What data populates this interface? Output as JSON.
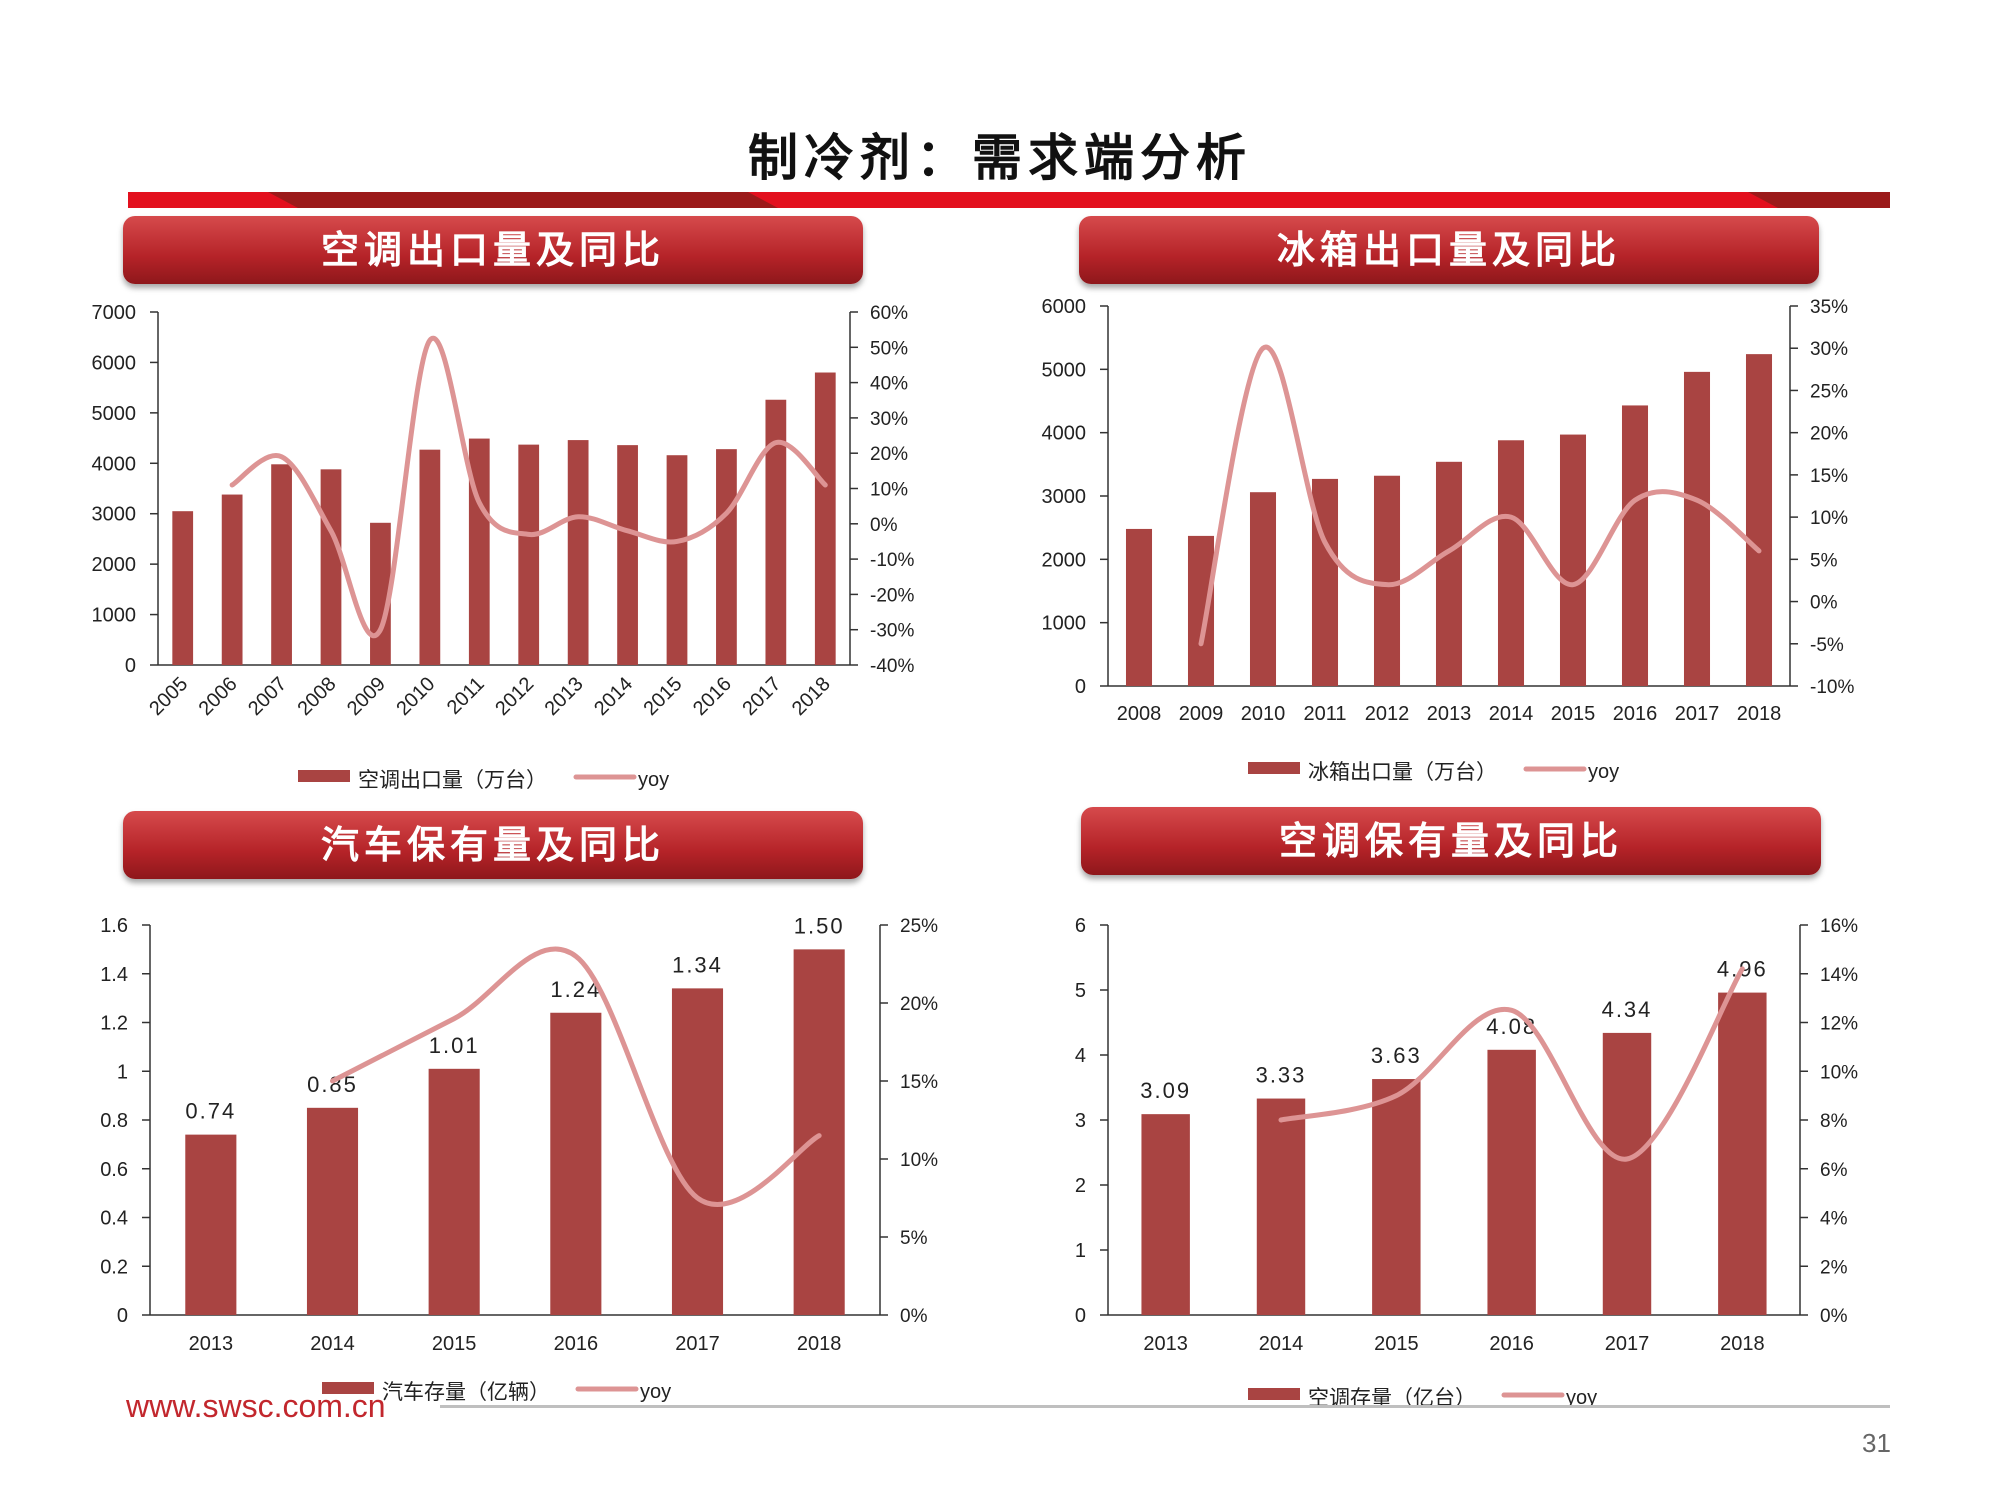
{
  "page": {
    "title": "制冷剂：需求端分析",
    "footer_url": "www.swsc.com.cn",
    "page_number": "31",
    "colors": {
      "bar": "#a94442",
      "line": "#dd9494",
      "header": "#b52328",
      "accent": "#e3101e"
    }
  },
  "panels": [
    {
      "title": "空调出口量及同比"
    },
    {
      "title": "冰箱出口量及同比"
    },
    {
      "title": "汽车保有量及同比"
    },
    {
      "title": "空调保有量及同比"
    }
  ],
  "chart_data": [
    {
      "type": "bar",
      "categories": [
        "2005",
        "2006",
        "2007",
        "2008",
        "2009",
        "2010",
        "2011",
        "2012",
        "2013",
        "2014",
        "2015",
        "2016",
        "2017",
        "2018"
      ],
      "series": [
        {
          "name": "空调出口量（万台）",
          "type": "bar",
          "axis": "left",
          "values": [
            3050,
            3380,
            3980,
            3880,
            2820,
            4270,
            4490,
            4370,
            4460,
            4360,
            4160,
            4280,
            5260,
            5800
          ]
        },
        {
          "name": "yoy",
          "type": "line",
          "axis": "right",
          "values": [
            null,
            11,
            19,
            -2,
            -30,
            52,
            6,
            -3,
            2,
            -2,
            -5,
            3,
            23,
            11
          ]
        }
      ],
      "y_left": {
        "min": 0,
        "max": 7000,
        "ticks": [
          "0",
          "1000",
          "2000",
          "3000",
          "4000",
          "5000",
          "6000",
          "7000"
        ]
      },
      "y_right": {
        "min": -40,
        "max": 60,
        "ticks": [
          "-40%",
          "-30%",
          "-20%",
          "-10%",
          "0%",
          "10%",
          "20%",
          "30%",
          "40%",
          "50%",
          "60%"
        ]
      },
      "legend": {
        "bar": "空调出口量（万台）",
        "line": "yoy"
      }
    },
    {
      "type": "bar",
      "categories": [
        "2008",
        "2009",
        "2010",
        "2011",
        "2012",
        "2013",
        "2014",
        "2015",
        "2016",
        "2017",
        "2018"
      ],
      "series": [
        {
          "name": "冰箱出口量（万台）",
          "type": "bar",
          "axis": "left",
          "values": [
            2480,
            2370,
            3060,
            3270,
            3320,
            3540,
            3880,
            3970,
            4430,
            4960,
            5240
          ]
        },
        {
          "name": "yoy",
          "type": "line",
          "axis": "right",
          "values": [
            null,
            -5,
            30,
            7,
            2,
            6,
            10,
            2,
            12,
            12,
            6
          ]
        }
      ],
      "y_left": {
        "min": 0,
        "max": 6000,
        "ticks": [
          "0",
          "1000",
          "2000",
          "3000",
          "4000",
          "5000",
          "6000"
        ]
      },
      "y_right": {
        "min": -10,
        "max": 35,
        "ticks": [
          "-10%",
          "-5%",
          "0%",
          "5%",
          "10%",
          "15%",
          "20%",
          "25%",
          "30%",
          "35%"
        ]
      },
      "legend": {
        "bar": "冰箱出口量（万台）",
        "line": "yoy"
      }
    },
    {
      "type": "bar",
      "categories": [
        "2013",
        "2014",
        "2015",
        "2016",
        "2017",
        "2018"
      ],
      "series": [
        {
          "name": "汽车存量（亿辆）",
          "type": "bar",
          "axis": "left",
          "values": [
            0.74,
            0.85,
            1.01,
            1.24,
            1.34,
            1.5
          ],
          "labels": [
            "0.74",
            "0.85",
            "1.01",
            "1.24",
            "1.34",
            "1.50"
          ]
        },
        {
          "name": "yoy",
          "type": "line",
          "axis": "right",
          "values": [
            null,
            15,
            19,
            23,
            7.5,
            11.5
          ]
        }
      ],
      "y_left": {
        "min": 0,
        "max": 1.6,
        "ticks": [
          "0",
          "0.2",
          "0.4",
          "0.6",
          "0.8",
          "1",
          "1.2",
          "1.4",
          "1.6"
        ]
      },
      "y_right": {
        "min": 0,
        "max": 25,
        "ticks": [
          "0%",
          "5%",
          "10%",
          "15%",
          "20%",
          "25%"
        ]
      },
      "legend": {
        "bar": "汽车存量（亿辆）",
        "line": "yoy"
      }
    },
    {
      "type": "bar",
      "categories": [
        "2013",
        "2014",
        "2015",
        "2016",
        "2017",
        "2018"
      ],
      "series": [
        {
          "name": "空调存量（亿台）",
          "type": "bar",
          "axis": "left",
          "values": [
            3.09,
            3.33,
            3.63,
            4.08,
            4.34,
            4.96
          ],
          "labels": [
            "3.09",
            "3.33",
            "3.63",
            "4.08",
            "4.34",
            "4.96"
          ]
        },
        {
          "name": "yoy",
          "type": "line",
          "axis": "right",
          "values": [
            null,
            8,
            9,
            12.5,
            6.4,
            14.2
          ]
        }
      ],
      "y_left": {
        "min": 0,
        "max": 6,
        "ticks": [
          "0",
          "1",
          "2",
          "3",
          "4",
          "5",
          "6"
        ]
      },
      "y_right": {
        "min": 0,
        "max": 16,
        "ticks": [
          "0%",
          "2%",
          "4%",
          "6%",
          "8%",
          "10%",
          "12%",
          "14%",
          "16%"
        ]
      },
      "legend": {
        "bar": "空调存量（亿台）",
        "line": "yoy"
      }
    }
  ]
}
